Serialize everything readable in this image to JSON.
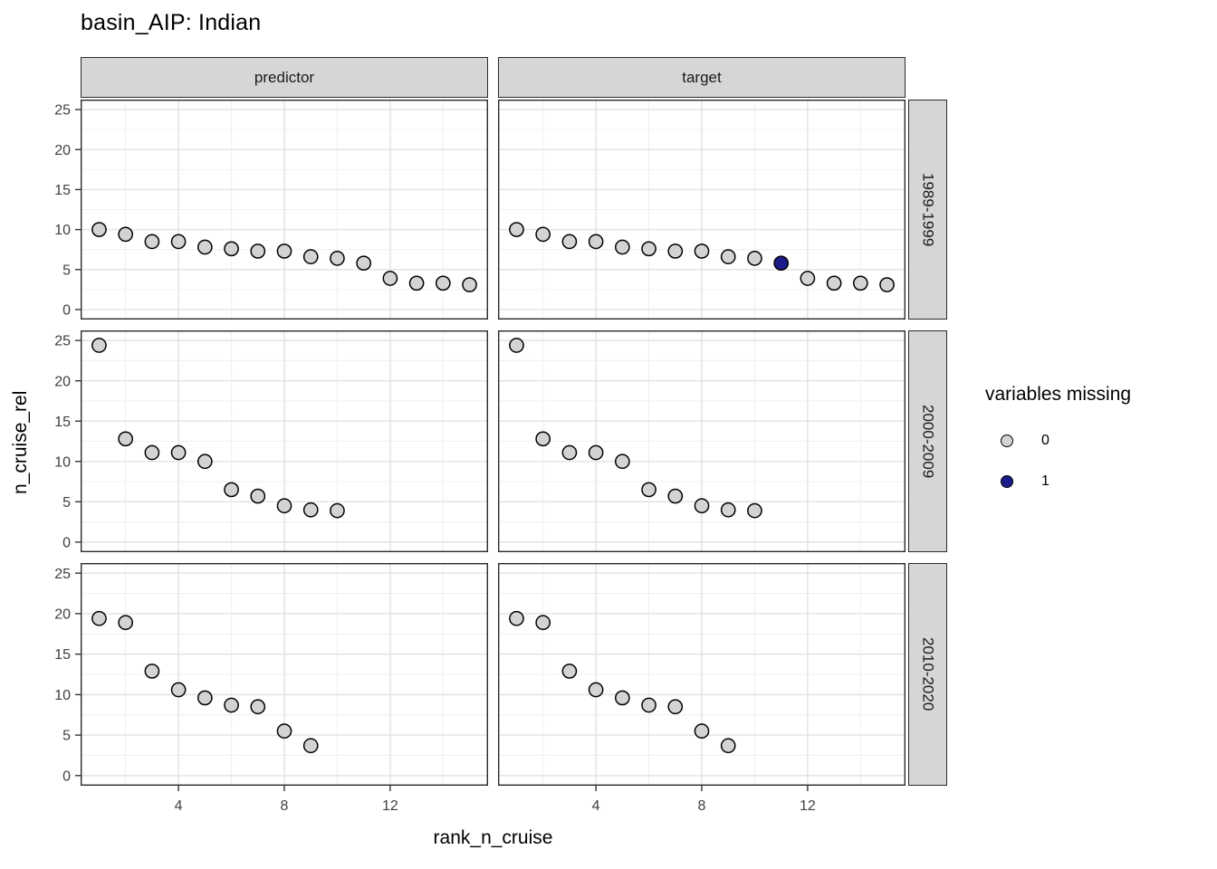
{
  "chart_data": {
    "type": "scatter",
    "title": "basin_AIP: Indian",
    "xlabel": "rank_n_cruise",
    "ylabel": "n_cruise_rel",
    "facet_cols": [
      "predictor",
      "target"
    ],
    "facet_rows": [
      "1989-1999",
      "2000-2009",
      "2010-2020"
    ],
    "x_ticks": [
      4,
      8,
      12
    ],
    "x_minor": [
      2,
      6,
      10,
      14
    ],
    "y_ticks": [
      0,
      5,
      10,
      15,
      20,
      25
    ],
    "y_minor": [
      2.5,
      7.5,
      12.5,
      17.5,
      22.5
    ],
    "xlim": [
      0.3,
      15.7
    ],
    "ylim": [
      -1.25,
      26.25
    ],
    "grid": true,
    "legend": {
      "title": "variables missing",
      "position": "right",
      "items": [
        {
          "label": "0",
          "color": "#d3d3d3"
        },
        {
          "label": "1",
          "color": "#1b1b8b"
        }
      ]
    },
    "point_outline": "#000000",
    "cells": [
      {
        "col": "predictor",
        "row": "1989-1999",
        "points": [
          [
            1,
            10.0,
            0
          ],
          [
            2,
            9.4,
            0
          ],
          [
            3,
            8.5,
            0
          ],
          [
            4,
            8.5,
            0
          ],
          [
            5,
            7.8,
            0
          ],
          [
            6,
            7.6,
            0
          ],
          [
            7,
            7.3,
            0
          ],
          [
            8,
            7.3,
            0
          ],
          [
            9,
            6.6,
            0
          ],
          [
            10,
            6.4,
            0
          ],
          [
            11,
            5.8,
            0
          ],
          [
            12,
            3.9,
            0
          ],
          [
            13,
            3.3,
            0
          ],
          [
            14,
            3.3,
            0
          ],
          [
            15,
            3.1,
            0
          ]
        ]
      },
      {
        "col": "target",
        "row": "1989-1999",
        "points": [
          [
            1,
            10.0,
            0
          ],
          [
            2,
            9.4,
            0
          ],
          [
            3,
            8.5,
            0
          ],
          [
            4,
            8.5,
            0
          ],
          [
            5,
            7.8,
            0
          ],
          [
            6,
            7.6,
            0
          ],
          [
            7,
            7.3,
            0
          ],
          [
            8,
            7.3,
            0
          ],
          [
            9,
            6.6,
            0
          ],
          [
            10,
            6.4,
            0
          ],
          [
            11,
            5.8,
            1
          ],
          [
            12,
            3.9,
            0
          ],
          [
            13,
            3.3,
            0
          ],
          [
            14,
            3.3,
            0
          ],
          [
            15,
            3.1,
            0
          ]
        ]
      },
      {
        "col": "predictor",
        "row": "2000-2009",
        "points": [
          [
            1,
            24.4,
            0
          ],
          [
            2,
            12.8,
            0
          ],
          [
            3,
            11.1,
            0
          ],
          [
            4,
            11.1,
            0
          ],
          [
            5,
            10.0,
            0
          ],
          [
            6,
            6.5,
            0
          ],
          [
            7,
            5.7,
            0
          ],
          [
            8,
            4.5,
            0
          ],
          [
            9,
            4.0,
            0
          ],
          [
            10,
            3.9,
            0
          ]
        ]
      },
      {
        "col": "target",
        "row": "2000-2009",
        "points": [
          [
            1,
            24.4,
            0
          ],
          [
            2,
            12.8,
            0
          ],
          [
            3,
            11.1,
            0
          ],
          [
            4,
            11.1,
            0
          ],
          [
            5,
            10.0,
            0
          ],
          [
            6,
            6.5,
            0
          ],
          [
            7,
            5.7,
            0
          ],
          [
            8,
            4.5,
            0
          ],
          [
            9,
            4.0,
            0
          ],
          [
            10,
            3.9,
            0
          ]
        ]
      },
      {
        "col": "predictor",
        "row": "2010-2020",
        "points": [
          [
            1,
            19.4,
            0
          ],
          [
            2,
            18.9,
            0
          ],
          [
            3,
            12.9,
            0
          ],
          [
            4,
            10.6,
            0
          ],
          [
            5,
            9.6,
            0
          ],
          [
            6,
            8.7,
            0
          ],
          [
            7,
            8.5,
            0
          ],
          [
            8,
            5.5,
            0
          ],
          [
            9,
            3.7,
            0
          ]
        ]
      },
      {
        "col": "target",
        "row": "2010-2020",
        "points": [
          [
            1,
            19.4,
            0
          ],
          [
            2,
            18.9,
            0
          ],
          [
            3,
            12.9,
            0
          ],
          [
            4,
            10.6,
            0
          ],
          [
            5,
            9.6,
            0
          ],
          [
            6,
            8.7,
            0
          ],
          [
            7,
            8.5,
            0
          ],
          [
            8,
            5.5,
            0
          ],
          [
            9,
            3.7,
            0
          ]
        ]
      }
    ]
  }
}
